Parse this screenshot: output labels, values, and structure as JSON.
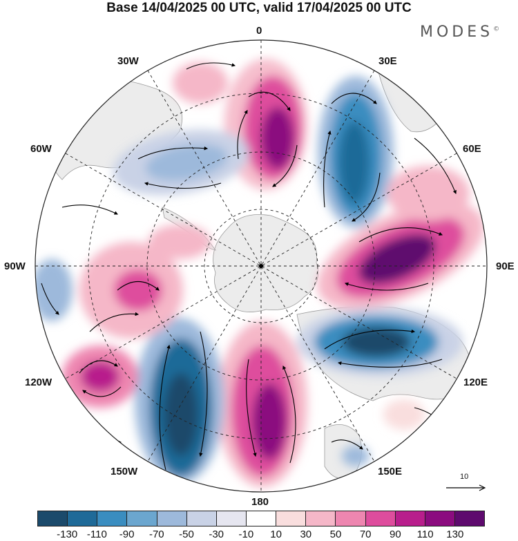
{
  "title": "Base 14/04/2025 00 UTC, valid 17/04/2025 00 UTC",
  "brand": {
    "text": "MODES",
    "mark": "©"
  },
  "map": {
    "projection": "south polar stereographic",
    "longitude_labels": {
      "n": "0",
      "nne": "30E",
      "ene": "60E",
      "e": "90E",
      "ese": "120E",
      "sse": "150E",
      "s": "180",
      "ssw": "150W",
      "wsw": "120W",
      "w": "90W",
      "wnw": "60W",
      "nnw": "30W"
    },
    "land_color": "#ececec",
    "coast_color": "#9a9a9a",
    "vector_color": "#000000"
  },
  "reference_vector": {
    "value": "10"
  },
  "colorbar": {
    "colors": [
      "#1b4a6b",
      "#1f6a98",
      "#3a8dc0",
      "#6ba6cf",
      "#9db9db",
      "#c9d2e6",
      "#e6e6f0",
      "#ffffff",
      "#f9dede",
      "#f5b7c8",
      "#ee86b0",
      "#de4d9d",
      "#b81e8c",
      "#8b0c7f",
      "#5e0a6e"
    ],
    "ticks": [
      "-130",
      "-110",
      "-90",
      "-70",
      "-50",
      "-30",
      "-10",
      "10",
      "30",
      "50",
      "70",
      "90",
      "110",
      "130"
    ]
  }
}
